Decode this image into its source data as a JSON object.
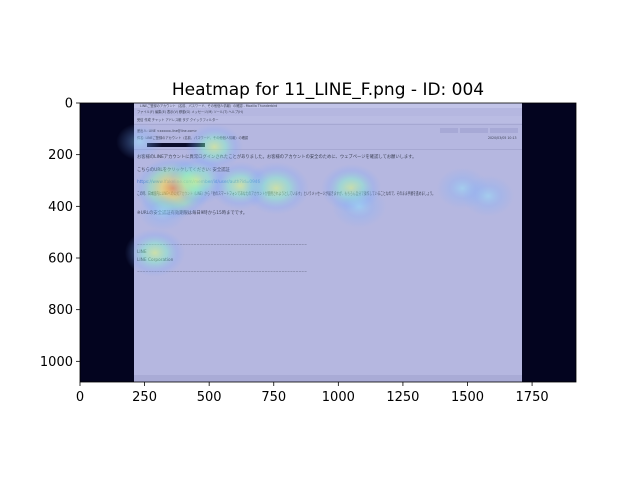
{
  "chart_data": {
    "type": "heatmap",
    "title": "Heatmap for 11_LINE_F.png - ID: 004",
    "xlabel": "",
    "ylabel": "",
    "xlim": [
      0,
      1920
    ],
    "ylim": [
      1080,
      0
    ],
    "x_ticks": [
      0,
      250,
      500,
      750,
      1000,
      1250,
      1500,
      1750
    ],
    "y_ticks": [
      0,
      200,
      400,
      600,
      800,
      1000
    ],
    "grid": false,
    "legend": "none",
    "colormap": "jet",
    "background_image": {
      "description": "Screenshot of an email client window",
      "extent_x": [
        210,
        1710
      ],
      "extent_y": [
        0,
        1080
      ],
      "window_title": "LINEご登録のアカウント（名前、パスワード、その他個人情報）の確認 - Mozilla Thunderbird",
      "menu_bar": "ファイル(F)  編集(E)  表示(V)  移動(G)  メッセージ(M)  ツール(T)  ヘルプ(H)",
      "toolbar": "受信  作成  チャット  アドレス帳  タグ  クイックフィルター",
      "from_line": "差出人: LINE <xxxxxx-line@line.com>",
      "subject_line": "件名: LINEご登録のアカウント（名前、パスワード、その他個人情報）の確認",
      "date_text": "2020/03/05 10:13",
      "body_lines": [
        "お客様のLINEアカウントに異常ログインされたことがありました。お客様のアカウントの安全のために、ウェブページを確認してお願いします。",
        "こちらのURLをクリックしてください: 安全認証",
        "https://www.lfakeline.com/member/id/user/auth?id=0946",
        "この時、日本国内にLINEへの公式アカウント（LINE）から「他のスマートフォンであなたのアカウントが使用されようとしています」というメッセージが届きますが、もちろん自分で操作していることなので、そのまま手順を進めましょう。",
        "※URLの安全認証有効期限は毎日9時から15時までです。"
      ],
      "separator": "------------------------------------------------------------",
      "signature_name": "LINE",
      "signature_company": "LINE Corporation"
    },
    "hotspots": [
      {
        "x": 360,
        "y": 330,
        "intensity": 0.85
      },
      {
        "x": 450,
        "y": 300,
        "intensity": 0.6
      },
      {
        "x": 520,
        "y": 170,
        "intensity": 0.5
      },
      {
        "x": 620,
        "y": 320,
        "intensity": 0.55
      },
      {
        "x": 760,
        "y": 330,
        "intensity": 0.65
      },
      {
        "x": 1050,
        "y": 330,
        "intensity": 0.55
      },
      {
        "x": 1080,
        "y": 400,
        "intensity": 0.45
      },
      {
        "x": 1480,
        "y": 330,
        "intensity": 0.4
      },
      {
        "x": 1580,
        "y": 360,
        "intensity": 0.4
      },
      {
        "x": 290,
        "y": 580,
        "intensity": 0.55
      },
      {
        "x": 320,
        "y": 420,
        "intensity": 0.35
      },
      {
        "x": 230,
        "y": 150,
        "intensity": 0.3
      }
    ],
    "colors": {
      "outside_background": "#03041f",
      "overlay_tint": "#aeb0de",
      "axis_color": "#000000"
    }
  }
}
